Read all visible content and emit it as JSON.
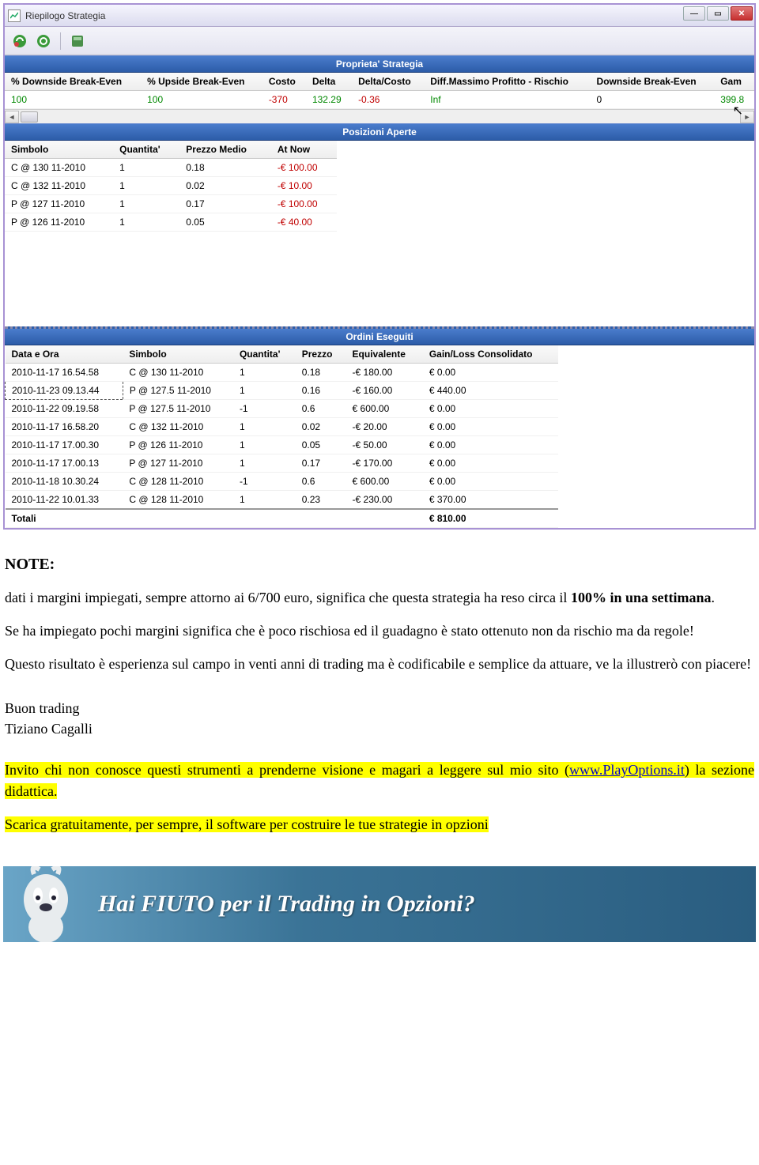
{
  "window": {
    "title": "Riepilogo Strategia"
  },
  "sections": {
    "proprieta": "Proprieta' Strategia",
    "posizioni": "Posizioni Aperte",
    "ordini": "Ordini Eseguiti"
  },
  "proprieta_table": {
    "columns": [
      "% Downside Break-Even",
      "% Upside Break-Even",
      "Costo",
      "Delta",
      "Delta/Costo",
      "Diff.Massimo Profitto - Rischio",
      "Downside Break-Even",
      "Gam"
    ],
    "row": {
      "downside_pct": "100",
      "upside_pct": "100",
      "costo": "-370",
      "delta": "132.29",
      "delta_costo": "-0.36",
      "diff": "Inf",
      "downside_be": "0",
      "gam": "399.8"
    },
    "colors": {
      "downside_pct": "#008800",
      "upside_pct": "#008800",
      "costo": "#c00000",
      "delta": "#008800",
      "delta_costo": "#c00000",
      "diff": "#008800",
      "downside_be": "#000000",
      "gam": "#008800"
    }
  },
  "posizioni_table": {
    "columns": [
      "Simbolo",
      "Quantita'",
      "Prezzo Medio",
      "At Now"
    ],
    "rows": [
      {
        "simbolo": "C @ 130 11-2010",
        "qty": "1",
        "prezzo": "0.18",
        "atnow": "-€ 100.00",
        "atnow_color": "#c00000"
      },
      {
        "simbolo": "C @ 132 11-2010",
        "qty": "1",
        "prezzo": "0.02",
        "atnow": "-€ 10.00",
        "atnow_color": "#c00000"
      },
      {
        "simbolo": "P @ 127 11-2010",
        "qty": "1",
        "prezzo": "0.17",
        "atnow": "-€ 100.00",
        "atnow_color": "#c00000"
      },
      {
        "simbolo": "P @ 126 11-2010",
        "qty": "1",
        "prezzo": "0.05",
        "atnow": "-€ 40.00",
        "atnow_color": "#c00000"
      }
    ]
  },
  "ordini_table": {
    "columns": [
      "Data e Ora",
      "Simbolo",
      "Quantita'",
      "Prezzo",
      "Equivalente",
      "Gain/Loss Consolidato"
    ],
    "rows": [
      {
        "data": "2010-11-17 16.54.58",
        "simbolo": "C @ 130 11-2010",
        "qty": "1",
        "prezzo": "0.18",
        "equiv": "-€ 180.00",
        "gl": "€ 0.00"
      },
      {
        "data": "2010-11-23 09.13.44",
        "simbolo": "P @ 127.5 11-2010",
        "qty": "1",
        "prezzo": "0.16",
        "equiv": "-€ 160.00",
        "gl": "€ 440.00",
        "selected": true
      },
      {
        "data": "2010-11-22 09.19.58",
        "simbolo": "P @ 127.5 11-2010",
        "qty": "-1",
        "prezzo": "0.6",
        "equiv": "€ 600.00",
        "gl": "€ 0.00"
      },
      {
        "data": "2010-11-17 16.58.20",
        "simbolo": "C @ 132 11-2010",
        "qty": "1",
        "prezzo": "0.02",
        "equiv": "-€ 20.00",
        "gl": "€ 0.00"
      },
      {
        "data": "2010-11-17 17.00.30",
        "simbolo": "P @ 126 11-2010",
        "qty": "1",
        "prezzo": "0.05",
        "equiv": "-€ 50.00",
        "gl": "€ 0.00"
      },
      {
        "data": "2010-11-17 17.00.13",
        "simbolo": "P @ 127 11-2010",
        "qty": "1",
        "prezzo": "0.17",
        "equiv": "-€ 170.00",
        "gl": "€ 0.00"
      },
      {
        "data": "2010-11-18 10.30.24",
        "simbolo": "C @ 128 11-2010",
        "qty": "-1",
        "prezzo": "0.6",
        "equiv": "€ 600.00",
        "gl": "€ 0.00"
      },
      {
        "data": "2010-11-22 10.01.33",
        "simbolo": "C @ 128 11-2010",
        "qty": "1",
        "prezzo": "0.23",
        "equiv": "-€ 230.00",
        "gl": "€ 370.00"
      }
    ],
    "totals_label": "Totali",
    "totals_gl": "€ 810.00"
  },
  "document": {
    "note_heading": "NOTE:",
    "para1_a": "dati i margini impiegati, sempre attorno ai 6/700 euro, significa che questa strategia ha reso circa il ",
    "para1_b": "100% in una settimana",
    "para1_c": ".",
    "para2": "Se ha impiegato pochi margini significa che è poco rischiosa ed il guadagno è stato ottenuto non da rischio ma da regole!",
    "para3": "Questo risultato è esperienza sul campo in venti anni di trading ma è codificabile e semplice da attuare, ve la illustrerò con piacere!",
    "sign1": "Buon trading",
    "sign2": "Tiziano Cagalli",
    "hl1_a": "Invito chi non conosce questi strumenti a prenderne visione e magari a leggere sul mio sito (",
    "hl1_link": "www.PlayOptions.it",
    "hl1_b": ") la sezione didattica.",
    "hl2": "Scarica gratuitamente, per sempre, il software per costruire le tue strategie in opzioni"
  },
  "banner": {
    "text": "Hai FIUTO per il Trading in Opzioni?"
  },
  "colors": {
    "section_header_bg_top": "#4a7ccc",
    "section_header_bg_bottom": "#2c5ca8",
    "window_border": "#a892d4",
    "highlight": "#ffff00"
  }
}
